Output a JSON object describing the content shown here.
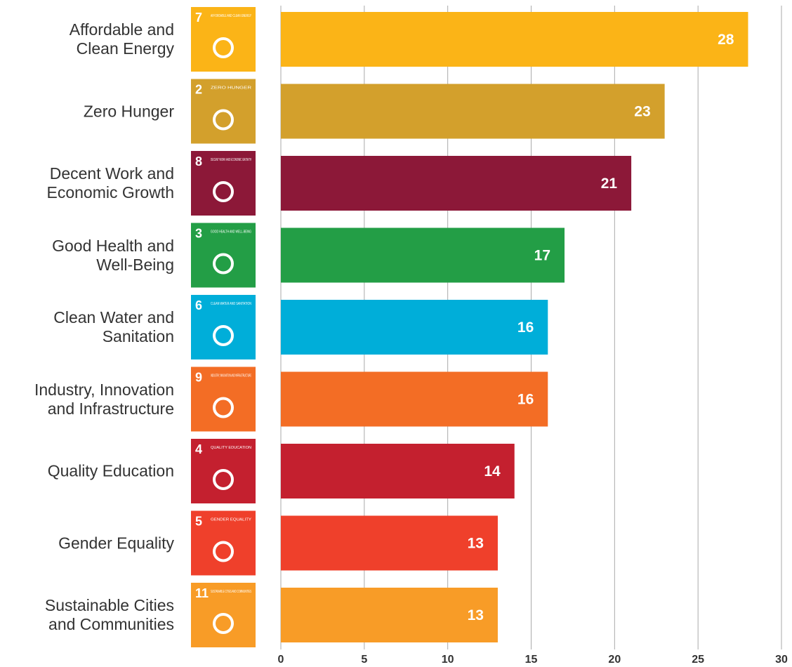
{
  "chart_data": {
    "type": "bar",
    "orientation": "horizontal",
    "categories": [
      "Affordable and\nClean Energy",
      "Zero Hunger",
      "Decent Work and\nEconomic Growth",
      "Good Health and\nWell-Being",
      "Clean Water and\nSanitation",
      "Industry, Innovation\nand Infrastructure",
      "Quality Education",
      "Gender Equality",
      "Sustainable Cities\nand Communities"
    ],
    "values": [
      28,
      23,
      21,
      17,
      16,
      16,
      14,
      13,
      13
    ],
    "colors": [
      "#fbb417",
      "#d3a02c",
      "#8c1838",
      "#239e46",
      "#00aed9",
      "#f36d25",
      "#c4202f",
      "#ef402b",
      "#f89c27"
    ],
    "icon_numbers": [
      "7",
      "2",
      "8",
      "3",
      "6",
      "9",
      "4",
      "5",
      "11"
    ],
    "icon_captions": [
      "AFFORDABLE AND CLEAN ENERGY",
      "ZERO HUNGER",
      "DECENT WORK AND ECONOMIC GROWTH",
      "GOOD HEALTH AND WELL-BEING",
      "CLEAN WATER AND SANITATION",
      "INDUSTRY, INNOVATION AND INFRASTRUCTURE",
      "QUALITY EDUCATION",
      "GENDER EQUALITY",
      "SUSTAINABLE CITIES AND COMMUNITIES"
    ],
    "xlim": [
      0,
      30
    ],
    "xticks": [
      0,
      5,
      10,
      15,
      20,
      25,
      30
    ],
    "grid": true
  }
}
